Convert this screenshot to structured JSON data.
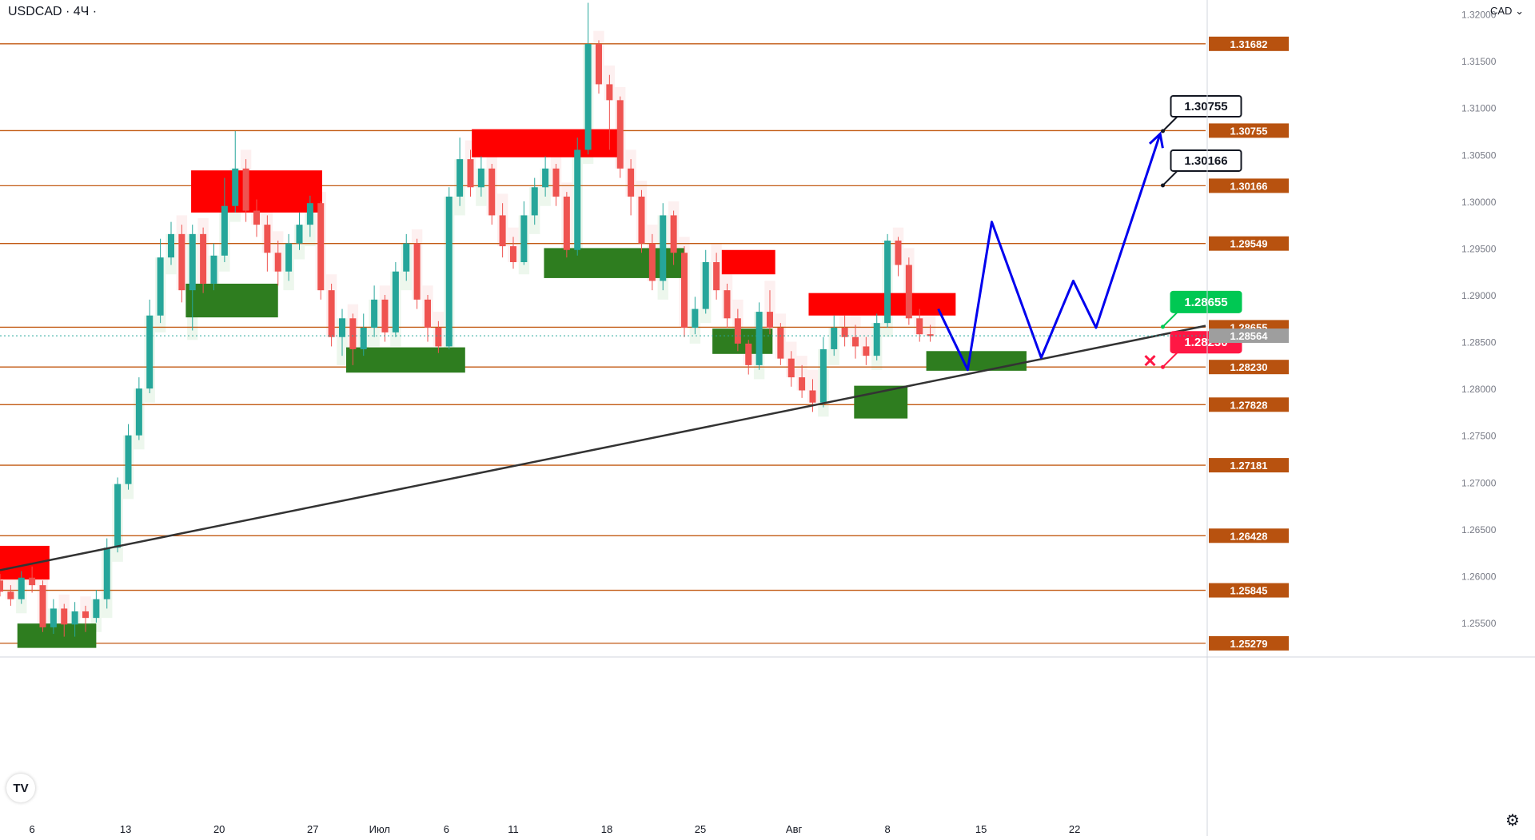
{
  "header": {
    "symbol": "USDCAD · 4Ч ·",
    "currency": "CAD"
  },
  "icons": {
    "logo": "tradingview-logo-icon",
    "settings": "gear-icon",
    "target_cross": "close-icon"
  },
  "chart_data": {
    "type": "candlestick",
    "symbol": "USDCAD",
    "timeframe": "4Ч",
    "currency": "CAD",
    "y_range": [
      1.2515,
      1.3215
    ],
    "x_range": [
      3.6,
      93.8
    ],
    "x_ticks": [
      {
        "label": "6",
        "x": 6
      },
      {
        "label": "13",
        "x": 13
      },
      {
        "label": "20",
        "x": 20
      },
      {
        "label": "27",
        "x": 27
      },
      {
        "label": "Июл",
        "x": 32
      },
      {
        "label": "6",
        "x": 37
      },
      {
        "label": "11",
        "x": 42
      },
      {
        "label": "18",
        "x": 49
      },
      {
        "label": "25",
        "x": 56
      },
      {
        "label": "Авг",
        "x": 63
      },
      {
        "label": "8",
        "x": 70
      },
      {
        "label": "15",
        "x": 77
      },
      {
        "label": "22",
        "x": 84
      }
    ],
    "y_ticks": [
      "1.32000",
      "1.31500",
      "1.31000",
      "1.30500",
      "1.30000",
      "1.29500",
      "1.29000",
      "1.28500",
      "1.28000",
      "1.27500",
      "1.27000",
      "1.26500",
      "1.26000",
      "1.25500"
    ],
    "levels": [
      "1.31682",
      "1.30755",
      "1.30166",
      "1.29549",
      "1.28655",
      "1.28230",
      "1.27828",
      "1.27181",
      "1.26428",
      "1.25845",
      "1.25279"
    ],
    "last_price": "1.28564",
    "candles": [
      [
        3.6,
        1.2595,
        1.2583,
        1.2602,
        1.2578
      ],
      [
        4.4,
        1.2583,
        1.2575,
        1.259,
        1.2568
      ],
      [
        5.2,
        1.2575,
        1.2598,
        1.2605,
        1.257
      ],
      [
        6,
        1.2598,
        1.259,
        1.261,
        1.2582
      ],
      [
        6.8,
        1.259,
        1.2545,
        1.2595,
        1.254
      ],
      [
        7.6,
        1.2545,
        1.2565,
        1.2575,
        1.2538
      ],
      [
        8.4,
        1.2565,
        1.2548,
        1.257,
        1.2535
      ],
      [
        9.2,
        1.2548,
        1.2562,
        1.2572,
        1.2535
      ],
      [
        10,
        1.2562,
        1.2555,
        1.2568,
        1.254
      ],
      [
        10.8,
        1.2555,
        1.2575,
        1.2585,
        1.255
      ],
      [
        11.6,
        1.2575,
        1.263,
        1.264,
        1.2565
      ],
      [
        12.4,
        1.263,
        1.2698,
        1.2705,
        1.2625
      ],
      [
        13.2,
        1.2698,
        1.275,
        1.2762,
        1.2692
      ],
      [
        14,
        1.275,
        1.28,
        1.2812,
        1.2745
      ],
      [
        14.8,
        1.28,
        1.2878,
        1.2895,
        1.2795
      ],
      [
        15.6,
        1.2878,
        1.294,
        1.296,
        1.287
      ],
      [
        16.4,
        1.294,
        1.2965,
        1.2978,
        1.2932
      ],
      [
        17.2,
        1.2965,
        1.2905,
        1.2975,
        1.2892
      ],
      [
        18,
        1.2905,
        1.2965,
        1.2975,
        1.2862
      ],
      [
        18.8,
        1.2965,
        1.2912,
        1.2972,
        1.2902
      ],
      [
        19.6,
        1.2912,
        1.2942,
        1.2955,
        1.2905
      ],
      [
        20.4,
        1.2942,
        1.2995,
        1.3025,
        1.2935
      ],
      [
        21.2,
        1.2995,
        1.3035,
        1.3075,
        1.2988
      ],
      [
        22,
        1.3035,
        1.299,
        1.3045,
        1.2978
      ],
      [
        22.8,
        1.299,
        1.2975,
        1.3002,
        1.2962
      ],
      [
        23.6,
        1.2975,
        1.2945,
        1.2985,
        1.2925
      ],
      [
        24.4,
        1.2945,
        1.2925,
        1.2958,
        1.291
      ],
      [
        25.2,
        1.2925,
        1.2955,
        1.2965,
        1.2915
      ],
      [
        26,
        1.2955,
        1.2975,
        1.2988,
        1.2948
      ],
      [
        26.8,
        1.2975,
        1.2998,
        1.3006,
        1.2962
      ],
      [
        27.6,
        1.2998,
        1.2905,
        1.3,
        1.2895
      ],
      [
        28.4,
        1.2905,
        1.2855,
        1.2912,
        1.2845
      ],
      [
        29.2,
        1.2855,
        1.2875,
        1.2885,
        1.2835
      ],
      [
        30,
        1.2875,
        1.2842,
        1.288,
        1.2825
      ],
      [
        30.8,
        1.2842,
        1.2865,
        1.288,
        1.2835
      ],
      [
        31.6,
        1.2865,
        1.2895,
        1.291,
        1.2855
      ],
      [
        32.4,
        1.2895,
        1.286,
        1.29,
        1.285
      ],
      [
        33.2,
        1.286,
        1.2925,
        1.2935,
        1.2855
      ],
      [
        34,
        1.2925,
        1.2955,
        1.2965,
        1.2915
      ],
      [
        34.8,
        1.2955,
        1.2895,
        1.296,
        1.2885
      ],
      [
        35.6,
        1.2895,
        1.2865,
        1.29,
        1.285
      ],
      [
        36.4,
        1.2865,
        1.2845,
        1.2872,
        1.2838
      ],
      [
        37.2,
        1.2845,
        1.3005,
        1.3015,
        1.2842
      ],
      [
        38,
        1.3005,
        1.3045,
        1.3068,
        1.2995
      ],
      [
        38.8,
        1.3045,
        1.3015,
        1.3055,
        1.3005
      ],
      [
        39.6,
        1.3015,
        1.3035,
        1.3048,
        1.3005
      ],
      [
        40.4,
        1.3035,
        1.2985,
        1.304,
        1.2975
      ],
      [
        41.2,
        1.2985,
        1.2952,
        1.2998,
        1.294
      ],
      [
        42,
        1.2952,
        1.2935,
        1.2962,
        1.2928
      ],
      [
        42.8,
        1.2935,
        1.2985,
        1.3,
        1.2932
      ],
      [
        43.6,
        1.2985,
        1.3015,
        1.3025,
        1.2975
      ],
      [
        44.4,
        1.3015,
        1.3035,
        1.3048,
        1.3005
      ],
      [
        45.2,
        1.3035,
        1.3005,
        1.304,
        1.2995
      ],
      [
        46,
        1.3005,
        1.2948,
        1.301,
        1.294
      ],
      [
        46.8,
        1.2948,
        1.3055,
        1.3068,
        1.2942
      ],
      [
        47.6,
        1.3055,
        1.3168,
        1.3212,
        1.305
      ],
      [
        48.4,
        1.3168,
        1.3125,
        1.3172,
        1.3115
      ],
      [
        49.2,
        1.3125,
        1.3108,
        1.3135,
        1.3055
      ],
      [
        50,
        1.3108,
        1.3035,
        1.3112,
        1.3025
      ],
      [
        50.8,
        1.3035,
        1.3005,
        1.3045,
        1.2985
      ],
      [
        51.6,
        1.3005,
        1.2955,
        1.3012,
        1.2945
      ],
      [
        52.4,
        1.2955,
        1.2915,
        1.2965,
        1.2905
      ],
      [
        53.2,
        1.2915,
        1.2985,
        1.2998,
        1.2905
      ],
      [
        54,
        1.2985,
        1.2945,
        1.299,
        1.2932
      ],
      [
        54.8,
        1.2945,
        1.2865,
        1.2952,
        1.2855
      ],
      [
        55.6,
        1.2865,
        1.2885,
        1.2898,
        1.2858
      ],
      [
        56.4,
        1.2885,
        1.2935,
        1.2948,
        1.288
      ],
      [
        57.2,
        1.2935,
        1.2905,
        1.2945,
        1.2895
      ],
      [
        58,
        1.2905,
        1.2875,
        1.2912,
        1.2865
      ],
      [
        58.8,
        1.2875,
        1.2848,
        1.2885,
        1.284
      ],
      [
        59.6,
        1.2848,
        1.2825,
        1.2852,
        1.2815
      ],
      [
        60.4,
        1.2825,
        1.2882,
        1.2892,
        1.282
      ],
      [
        61.2,
        1.2882,
        1.2865,
        1.2905,
        1.2858
      ],
      [
        62,
        1.2865,
        1.2832,
        1.287,
        1.2825
      ],
      [
        62.8,
        1.2832,
        1.2812,
        1.284,
        1.2802
      ],
      [
        63.6,
        1.2812,
        1.2798,
        1.2825,
        1.279
      ],
      [
        64.4,
        1.2798,
        1.2785,
        1.281,
        1.2775
      ],
      [
        65.2,
        1.2785,
        1.2842,
        1.2855,
        1.278
      ],
      [
        66,
        1.2842,
        1.2865,
        1.2878,
        1.2835
      ],
      [
        66.8,
        1.2865,
        1.2855,
        1.2878,
        1.2845
      ],
      [
        67.6,
        1.2855,
        1.2845,
        1.2868,
        1.2832
      ],
      [
        68.4,
        1.2845,
        1.2835,
        1.2855,
        1.2825
      ],
      [
        69.2,
        1.2835,
        1.287,
        1.288,
        1.283
      ],
      [
        70,
        1.287,
        1.2958,
        1.2965,
        1.2865
      ],
      [
        70.8,
        1.2958,
        1.2932,
        1.2962,
        1.292
      ],
      [
        71.6,
        1.2932,
        1.2875,
        1.294,
        1.2868
      ],
      [
        72.4,
        1.2875,
        1.2858,
        1.2885,
        1.285
      ],
      [
        73.2,
        1.2858,
        1.2856,
        1.2868,
        1.285
      ]
    ],
    "red_boxes": [
      {
        "x0": 3.6,
        "x1": 7.3,
        "y0": 1.2596,
        "y1": 1.2632
      },
      {
        "x0": 17.9,
        "x1": 27.7,
        "y0": 1.2988,
        "y1": 1.3033
      },
      {
        "x0": 38.9,
        "x1": 49.9,
        "y0": 1.3047,
        "y1": 1.3077
      },
      {
        "x0": 57.6,
        "x1": 61.6,
        "y0": 1.2922,
        "y1": 1.2948
      },
      {
        "x0": 64.1,
        "x1": 75.1,
        "y0": 1.2878,
        "y1": 1.2902
      }
    ],
    "green_boxes": [
      {
        "x0": 4.9,
        "x1": 10.8,
        "y0": 1.2523,
        "y1": 1.2549
      },
      {
        "x0": 17.5,
        "x1": 24.4,
        "y0": 1.2876,
        "y1": 1.2912
      },
      {
        "x0": 29.5,
        "x1": 38.4,
        "y0": 1.2817,
        "y1": 1.2844
      },
      {
        "x0": 44.3,
        "x1": 54.8,
        "y0": 1.2918,
        "y1": 1.295
      },
      {
        "x0": 56.9,
        "x1": 61.4,
        "y0": 1.2837,
        "y1": 1.2864
      },
      {
        "x0": 67.5,
        "x1": 71.5,
        "y0": 1.2768,
        "y1": 1.2803
      },
      {
        "x0": 72.9,
        "x1": 80.4,
        "y0": 1.2819,
        "y1": 1.284
      }
    ],
    "trendline": {
      "x0": 3.6,
      "y0": 1.2606,
      "x1": 93.8,
      "y1": 1.2867
    },
    "forecast_path": [
      [
        73.8,
        1.2885
      ],
      [
        76,
        1.282
      ],
      [
        77.8,
        1.2978
      ],
      [
        81.5,
        1.2833
      ],
      [
        83.9,
        1.2915
      ],
      [
        85.6,
        1.2865
      ],
      [
        90.4,
        1.3072
      ]
    ],
    "price_labels": [
      {
        "text": "1.30755",
        "style": "black",
        "x": 90.6,
        "y": 1.3075
      },
      {
        "text": "1.30166",
        "style": "black",
        "x": 90.6,
        "y": 1.3017
      },
      {
        "text": "1.28655",
        "style": "green",
        "x": 90.6,
        "y": 1.2866
      },
      {
        "text": "1.28230",
        "style": "red",
        "x": 90.6,
        "y": 1.2823
      }
    ],
    "colors": {
      "level": "#c25a13",
      "level_label": "#b8520f",
      "bull": "#26a69a",
      "bear": "#ef5350",
      "red_box": "#ff0000",
      "green_box": "#2e7d1f",
      "trend": "#333333",
      "forecast": "#0000ee",
      "label_green": "#00c853",
      "label_red": "#ff1744"
    }
  }
}
